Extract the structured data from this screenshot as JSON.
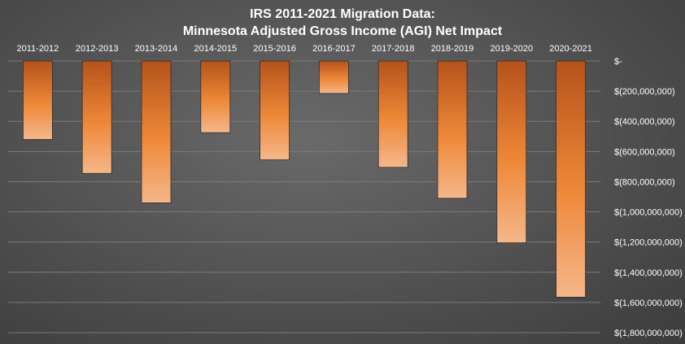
{
  "chart_data": {
    "type": "bar",
    "title": [
      "IRS 2011-2021 Migration Data:",
      "Minnesota Adjusted Gross Income (AGI) Net Impact"
    ],
    "categories": [
      "2011-2012",
      "2012-2013",
      "2013-2014",
      "2014-2015",
      "2015-2016",
      "2016-2017",
      "2017-2018",
      "2018-2019",
      "2019-2020",
      "2020-2021"
    ],
    "values": [
      -520000000,
      -745000000,
      -940000000,
      -475000000,
      -655000000,
      -215000000,
      -705000000,
      -910000000,
      -1205000000,
      -1565000000
    ],
    "ylim": [
      -1800000000,
      0
    ],
    "yticks": [
      0,
      -200000000,
      -400000000,
      -600000000,
      -800000000,
      -1000000000,
      -1200000000,
      -1400000000,
      -1600000000,
      -1800000000
    ],
    "ytick_labels": [
      "$-",
      "$(200,000,000)",
      "$(400,000,000)",
      "$(600,000,000)",
      "$(800,000,000)",
      "$(1,000,000,000)",
      "$(1,200,000,000)",
      "$(1,400,000,000)",
      "$(1,600,000,000)",
      "$(1,800,000,000)"
    ],
    "xlabel": "",
    "ylabel": "",
    "grid": true,
    "legend": "none",
    "colors": {
      "bar_top": "#b5521a",
      "bar_mid": "#ee8838",
      "bar_bottom": "#f5b78a",
      "gridline": "#7a7a7a",
      "text": "#ffffff"
    }
  }
}
